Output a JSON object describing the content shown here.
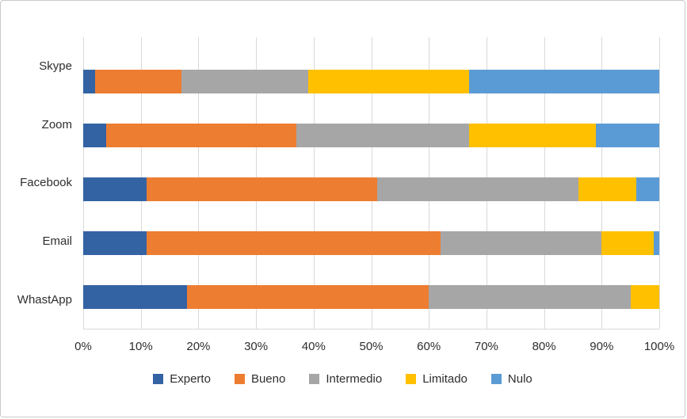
{
  "chart_data": {
    "type": "bar",
    "variant": "stacked-100",
    "orientation": "horizontal",
    "title": "",
    "categories": [
      "Skype",
      "Zoom",
      "Facebook",
      "Email",
      "WhastApp"
    ],
    "series": [
      {
        "name": "Experto",
        "color": "#3463A4",
        "values": [
          2,
          4,
          11,
          11,
          18
        ]
      },
      {
        "name": "Bueno",
        "color": "#ED7D31",
        "values": [
          15,
          33,
          40,
          51,
          42
        ]
      },
      {
        "name": "Intermedio",
        "color": "#A6A6A6",
        "values": [
          22,
          30,
          35,
          28,
          35
        ]
      },
      {
        "name": "Limitado",
        "color": "#FFC000",
        "values": [
          28,
          22,
          10,
          9,
          5
        ]
      },
      {
        "name": "Nulo",
        "color": "#5B9BD5",
        "values": [
          33,
          11,
          4,
          1,
          0
        ]
      }
    ],
    "value_unit": "%",
    "x_axis": {
      "min": 0,
      "max": 100,
      "tick_labels": [
        "0%",
        "10%",
        "20%",
        "30%",
        "40%",
        "50%",
        "60%",
        "70%",
        "80%",
        "90%",
        "100%"
      ]
    },
    "grid": "vertical",
    "grid_color": "#d9d9d9",
    "legend": {
      "position": "bottom",
      "entries": [
        "Experto",
        "Bueno",
        "Intermedio",
        "Limitado",
        "Nulo"
      ]
    }
  }
}
